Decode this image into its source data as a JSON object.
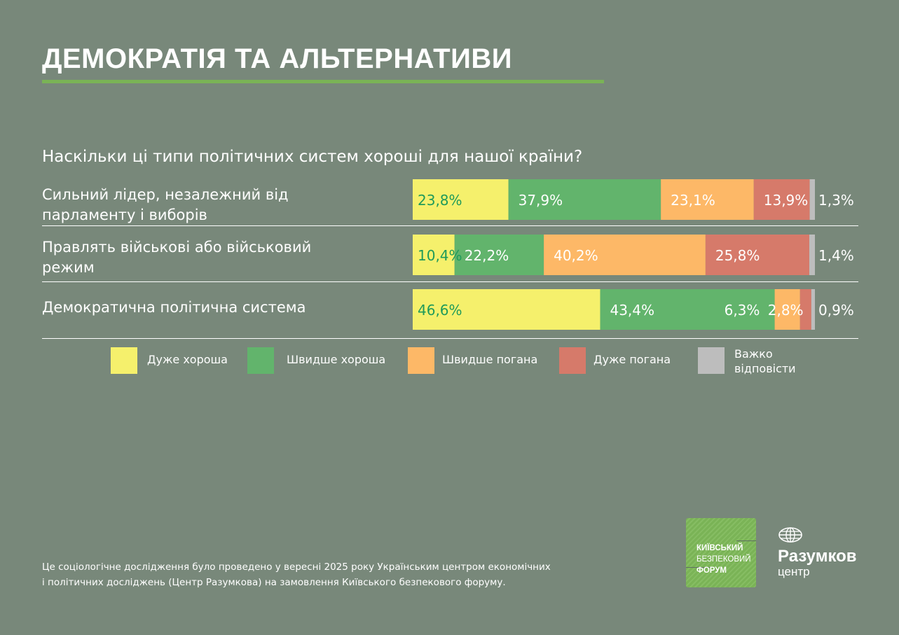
{
  "header": {
    "title": "ДЕМОКРАТІЯ ТА АЛЬТЕРНАТИВИ"
  },
  "colors": {
    "background": "#78887a",
    "accent_rule": "#7ab356",
    "very_good": "#f5f06c",
    "rather_good": "#62b46c",
    "rather_bad": "#fdb867",
    "very_bad": "#d67a6a",
    "hard_to_say": "#bdbdbd",
    "dark_label": "#1f9a5a",
    "light_label": "#ffffff"
  },
  "chart_data": {
    "type": "bar",
    "orientation": "horizontal",
    "stacked": true,
    "title": "Наскільки ці типи політичних систем хороші для нашої країни?",
    "categories": [
      "Сильний лідер, незалежний від парламенту і виборів",
      "Правлять військові або військовий режим",
      "Демократична політична система"
    ],
    "series": [
      {
        "name": "Дуже хороша",
        "color_key": "very_good",
        "values": [
          23.8,
          10.4,
          46.6
        ],
        "labels": [
          "23,8%",
          "10,4%",
          "46,6%"
        ]
      },
      {
        "name": "Швидше хороша",
        "color_key": "rather_good",
        "values": [
          37.9,
          22.2,
          43.4
        ],
        "labels": [
          "37,9%",
          "22,2%",
          "43,4%"
        ]
      },
      {
        "name": "Швидше погана",
        "color_key": "rather_bad",
        "values": [
          23.1,
          40.2,
          6.3
        ],
        "labels": [
          "23,1%",
          "40,2%",
          "6,3%"
        ]
      },
      {
        "name": "Дуже погана",
        "color_key": "very_bad",
        "values": [
          13.9,
          25.8,
          2.8
        ],
        "labels": [
          "13,9%",
          "25,8%",
          "2,8%"
        ]
      },
      {
        "name": "Важко відповісти",
        "color_key": "hard_to_say",
        "values": [
          1.3,
          1.4,
          0.9
        ],
        "labels": [
          "1,3%",
          "1,4%",
          "0,9%"
        ]
      }
    ],
    "xlim": [
      0,
      100
    ],
    "unit": "%",
    "grid": false,
    "legend_position": "bottom"
  },
  "legend": [
    {
      "label": "Дуже хороша",
      "color_key": "very_good"
    },
    {
      "label": "Швидше хороша",
      "color_key": "rather_good"
    },
    {
      "label": "Швидше погана",
      "color_key": "rather_bad"
    },
    {
      "label": "Дуже погана",
      "color_key": "very_bad"
    },
    {
      "label": "Важко відповісти",
      "color_key": "hard_to_say"
    }
  ],
  "rows": [
    {
      "label_line1": "Сильний лідер, незалежний від",
      "label_line2": "парламенту і виборів"
    },
    {
      "label_line1": "Правлять військові або військовий",
      "label_line2": "режим"
    },
    {
      "label_line1": "Демократична політична система",
      "label_line2": ""
    }
  ],
  "footnote": {
    "line1": "Це соціологічне дослідження було проведено у вересні 2025 року Українським центром економічних",
    "line2": "і політичних досліджень (Центр Разумкова) на замовлення Київського безпекового форуму."
  },
  "logos": {
    "kbf": {
      "line1": "КИЇВСЬКИЙ",
      "line2": "БЕЗПЕКОВИЙ",
      "line3": "ФОРУМ"
    },
    "razumkov": {
      "name": "Разумков",
      "sub": "центр"
    }
  }
}
